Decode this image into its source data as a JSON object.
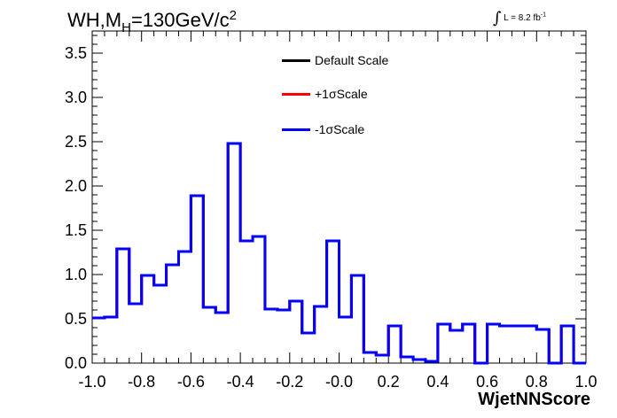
{
  "title": {
    "main": "WH,M",
    "sub": "H",
    "rest": "=130GeV/c",
    "sup": "2"
  },
  "lumi": {
    "symbol": "∫",
    "text": "L = 8.2 fb",
    "sup": "-1"
  },
  "legend": [
    {
      "label": "Default Scale",
      "color": "#000000"
    },
    {
      "label": "+1σScale",
      "color": "#ff0000"
    },
    {
      "label": "-1σScale",
      "color": "#0000ff"
    }
  ],
  "chart_data": {
    "type": "histogram",
    "xlabel": "WjetNNScore",
    "ylabel": "",
    "xlim": [
      -1.0,
      1.0
    ],
    "ylim": [
      0,
      3.75
    ],
    "bin_width": 0.05,
    "xticks": [
      "-1.0",
      "-0.8",
      "-0.6",
      "-0.4",
      "-0.2",
      "-0.0",
      "0.2",
      "0.4",
      "0.6",
      "0.8",
      "1.0"
    ],
    "yticks": [
      "0.0",
      "0.5",
      "1.0",
      "1.5",
      "2.0",
      "2.5",
      "3.0",
      "3.5"
    ],
    "grid": false,
    "legend_position": "top-center",
    "series": [
      {
        "name": "Default Scale",
        "color": "#000000",
        "values": [
          0.51,
          0.52,
          1.29,
          0.67,
          0.99,
          0.88,
          1.11,
          1.26,
          1.89,
          0.63,
          0.57,
          2.48,
          1.38,
          1.43,
          0.61,
          0.6,
          0.7,
          0.34,
          0.64,
          1.38,
          0.52,
          0.99,
          0.12,
          0.09,
          0.42,
          0.07,
          0.04,
          0.02,
          0.44,
          0.37,
          0.44,
          0.0,
          0.44,
          0.42,
          0.42,
          0.42,
          0.38,
          0.0,
          0.42,
          0.0
        ]
      },
      {
        "name": "+1σScale",
        "color": "#ff0000",
        "values": [
          0.51,
          0.52,
          1.29,
          0.67,
          0.99,
          0.88,
          1.11,
          1.26,
          1.89,
          0.63,
          0.57,
          2.48,
          1.38,
          1.43,
          0.61,
          0.6,
          0.7,
          0.34,
          0.64,
          1.38,
          0.52,
          0.99,
          0.12,
          0.09,
          0.42,
          0.07,
          0.04,
          0.02,
          0.44,
          0.37,
          0.44,
          0.0,
          0.44,
          0.42,
          0.42,
          0.42,
          0.38,
          0.0,
          0.42,
          0.0
        ]
      },
      {
        "name": "-1σScale",
        "color": "#0000ff",
        "values": [
          0.51,
          0.52,
          1.29,
          0.67,
          0.99,
          0.88,
          1.11,
          1.26,
          1.89,
          0.63,
          0.57,
          2.48,
          1.38,
          1.43,
          0.61,
          0.6,
          0.7,
          0.34,
          0.64,
          1.38,
          0.52,
          0.99,
          0.12,
          0.09,
          0.42,
          0.07,
          0.04,
          0.02,
          0.44,
          0.37,
          0.44,
          0.0,
          0.44,
          0.42,
          0.42,
          0.42,
          0.38,
          0.0,
          0.42,
          0.0
        ]
      }
    ]
  }
}
